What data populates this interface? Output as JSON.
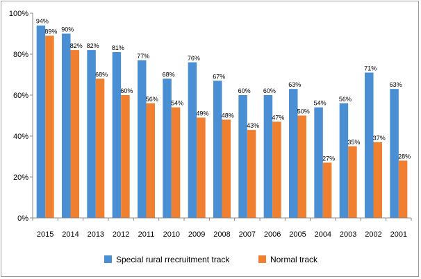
{
  "chart_data": {
    "type": "bar",
    "categories": [
      "2015",
      "2014",
      "2013",
      "2012",
      "2011",
      "2010",
      "2009",
      "2008",
      "2007",
      "2006",
      "2005",
      "2004",
      "2003",
      "2002",
      "2001"
    ],
    "series": [
      {
        "name": "Special rural rrecruitment track",
        "color": "#4a8fd4",
        "values": [
          94,
          90,
          82,
          81,
          77,
          68,
          76,
          67,
          60,
          60,
          63,
          54,
          56,
          71,
          63
        ]
      },
      {
        "name": "Normal track",
        "color": "#f07f30",
        "values": [
          89,
          82,
          68,
          60,
          56,
          54,
          49,
          48,
          43,
          47,
          50,
          27,
          35,
          37,
          28
        ]
      }
    ],
    "ylim": [
      0,
      100
    ],
    "yticks": [
      "0%",
      "20%",
      "40%",
      "60%",
      "80%",
      "100%"
    ],
    "ytick_values": [
      0,
      20,
      40,
      60,
      80,
      100
    ],
    "grid": false,
    "legend": "bottom",
    "value_suffix": "%"
  }
}
